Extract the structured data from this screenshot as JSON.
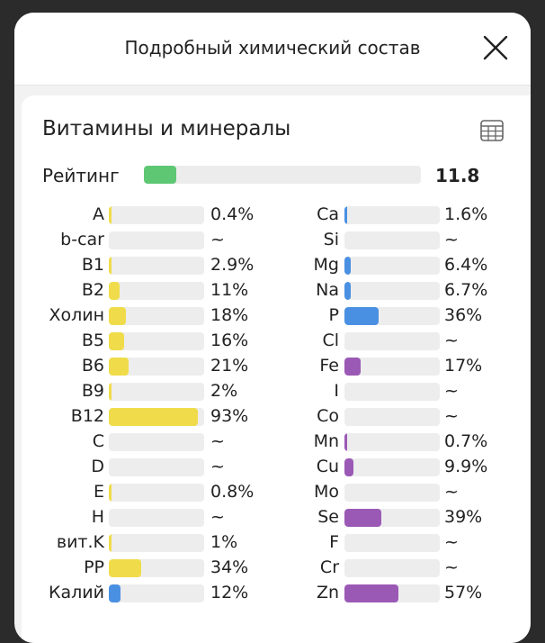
{
  "header": {
    "title": "Подробный химический состав",
    "close_icon": "close-icon"
  },
  "section": {
    "title": "Витамины и минералы",
    "table_icon": "table-icon"
  },
  "rating": {
    "label": "Рейтинг",
    "value": "11.8",
    "fill_fraction": 0.118,
    "color": "#5ec774"
  },
  "colors": {
    "vitamin": "#f0dc4a",
    "mineral": "#4a90e2",
    "micro": "#9b59b6",
    "track": "#ededed"
  },
  "vitamins": [
    {
      "name": "A",
      "value": "0.4%",
      "percent": 0.4,
      "color": "#f0dc4a"
    },
    {
      "name": "b-car",
      "value": "~",
      "percent": 0,
      "color": "#f0dc4a"
    },
    {
      "name": "B1",
      "value": "2.9%",
      "percent": 2.9,
      "color": "#f0dc4a"
    },
    {
      "name": "B2",
      "value": "11%",
      "percent": 11,
      "color": "#f0dc4a"
    },
    {
      "name": "Холин",
      "value": "18%",
      "percent": 18,
      "color": "#f0dc4a"
    },
    {
      "name": "B5",
      "value": "16%",
      "percent": 16,
      "color": "#f0dc4a"
    },
    {
      "name": "B6",
      "value": "21%",
      "percent": 21,
      "color": "#f0dc4a"
    },
    {
      "name": "B9",
      "value": "2%",
      "percent": 2,
      "color": "#f0dc4a"
    },
    {
      "name": "B12",
      "value": "93%",
      "percent": 93,
      "color": "#f0dc4a"
    },
    {
      "name": "C",
      "value": "~",
      "percent": 0,
      "color": "#f0dc4a"
    },
    {
      "name": "D",
      "value": "~",
      "percent": 0,
      "color": "#f0dc4a"
    },
    {
      "name": "E",
      "value": "0.8%",
      "percent": 0.8,
      "color": "#f0dc4a"
    },
    {
      "name": "H",
      "value": "~",
      "percent": 0,
      "color": "#f0dc4a"
    },
    {
      "name": "вит.K",
      "value": "1%",
      "percent": 1,
      "color": "#f0dc4a"
    },
    {
      "name": "PP",
      "value": "34%",
      "percent": 34,
      "color": "#f0dc4a"
    },
    {
      "name": "Калий",
      "value": "12%",
      "percent": 12,
      "color": "#4a90e2"
    }
  ],
  "minerals": [
    {
      "name": "Ca",
      "value": "1.6%",
      "percent": 1.6,
      "color": "#4a90e2"
    },
    {
      "name": "Si",
      "value": "~",
      "percent": 0,
      "color": "#4a90e2"
    },
    {
      "name": "Mg",
      "value": "6.4%",
      "percent": 6.4,
      "color": "#4a90e2"
    },
    {
      "name": "Na",
      "value": "6.7%",
      "percent": 6.7,
      "color": "#4a90e2"
    },
    {
      "name": "P",
      "value": "36%",
      "percent": 36,
      "color": "#4a90e2"
    },
    {
      "name": "Cl",
      "value": "~",
      "percent": 0,
      "color": "#4a90e2"
    },
    {
      "name": "Fe",
      "value": "17%",
      "percent": 17,
      "color": "#9b59b6"
    },
    {
      "name": "I",
      "value": "~",
      "percent": 0,
      "color": "#9b59b6"
    },
    {
      "name": "Co",
      "value": "~",
      "percent": 0,
      "color": "#9b59b6"
    },
    {
      "name": "Mn",
      "value": "0.7%",
      "percent": 0.7,
      "color": "#9b59b6"
    },
    {
      "name": "Cu",
      "value": "9.9%",
      "percent": 9.9,
      "color": "#9b59b6"
    },
    {
      "name": "Mo",
      "value": "~",
      "percent": 0,
      "color": "#9b59b6"
    },
    {
      "name": "Se",
      "value": "39%",
      "percent": 39,
      "color": "#9b59b6"
    },
    {
      "name": "F",
      "value": "~",
      "percent": 0,
      "color": "#9b59b6"
    },
    {
      "name": "Cr",
      "value": "~",
      "percent": 0,
      "color": "#9b59b6"
    },
    {
      "name": "Zn",
      "value": "57%",
      "percent": 57,
      "color": "#9b59b6"
    }
  ]
}
